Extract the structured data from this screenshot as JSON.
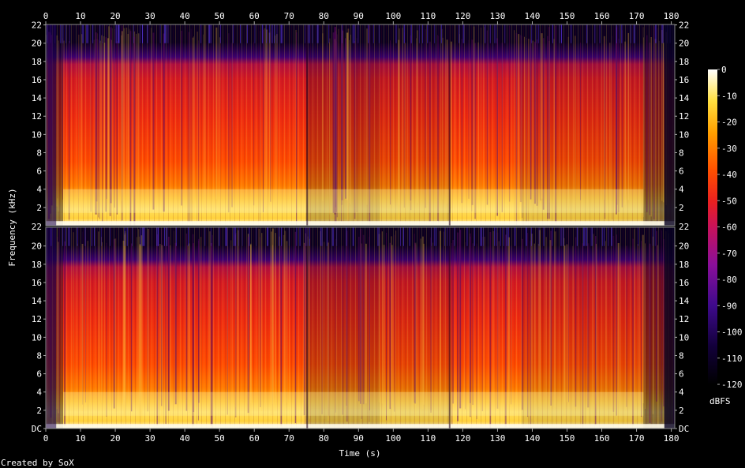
{
  "chart_data": {
    "type": "heatmap",
    "subtype": "spectrogram",
    "title": "",
    "xlabel": "Time (s)",
    "ylabel": "Frequency (kHz)",
    "colorbar_label": "dBFS",
    "footer": "Created by SoX",
    "x_range": [
      0,
      181
    ],
    "x_ticks": [
      0,
      10,
      20,
      30,
      40,
      50,
      60,
      70,
      80,
      90,
      100,
      110,
      120,
      130,
      140,
      150,
      160,
      170,
      180
    ],
    "y_range_khz": [
      0,
      22.05
    ],
    "y_ticks": [
      {
        "value": 0,
        "label": "DC"
      },
      {
        "value": 2,
        "label": "2"
      },
      {
        "value": 4,
        "label": "4"
      },
      {
        "value": 6,
        "label": "6"
      },
      {
        "value": 8,
        "label": "8"
      },
      {
        "value": 10,
        "label": "10"
      },
      {
        "value": 12,
        "label": "12"
      },
      {
        "value": 14,
        "label": "14"
      },
      {
        "value": 16,
        "label": "16"
      },
      {
        "value": 18,
        "label": "18"
      },
      {
        "value": 20,
        "label": "20"
      },
      {
        "value": 22,
        "label": "22"
      }
    ],
    "colorbar_range_dbfs": [
      -120,
      0
    ],
    "colorbar_ticks": [
      0,
      -10,
      -20,
      -30,
      -40,
      -50,
      -60,
      -70,
      -80,
      -90,
      -100,
      -110,
      -120
    ],
    "channels": 2,
    "approx_segments_time_s": [
      {
        "start": 0,
        "end": 5,
        "level": "low"
      },
      {
        "start": 5,
        "end": 75,
        "level": "high"
      },
      {
        "start": 75,
        "end": 96,
        "level": "medium"
      },
      {
        "start": 96,
        "end": 116,
        "level": "medium-high"
      },
      {
        "start": 116,
        "end": 137,
        "level": "high"
      },
      {
        "start": 137,
        "end": 172,
        "level": "medium-high"
      },
      {
        "start": 172,
        "end": 181,
        "level": "fade"
      }
    ],
    "colormap": [
      "#000000",
      "#22005a",
      "#5a1ea0",
      "#9a0f8a",
      "#d4132c",
      "#ff3c00",
      "#ff9a00",
      "#ffe040",
      "#ffffc8",
      "#ffffff"
    ]
  }
}
